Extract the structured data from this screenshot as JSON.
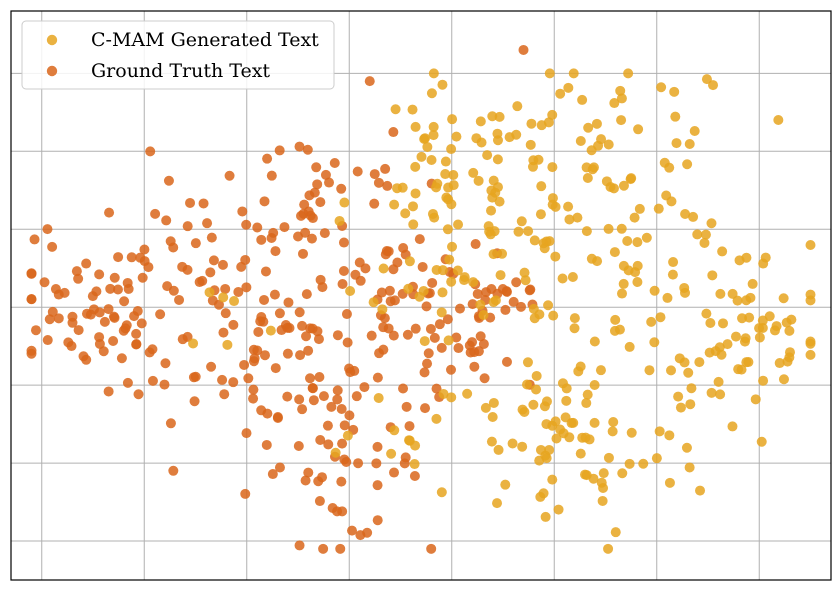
{
  "chart_data": {
    "type": "scatter",
    "title": "",
    "xlabel": "",
    "ylabel": "",
    "xlim": [
      -40,
      40
    ],
    "ylim": [
      -35,
      38
    ],
    "grid": true,
    "xticks": [
      -37,
      -27,
      -17,
      -7,
      3,
      13,
      23,
      33
    ],
    "yticks": [
      30,
      20,
      10,
      0,
      -10,
      -20,
      -30
    ],
    "xtick_labels": [],
    "ytick_labels": [],
    "legend": {
      "placement": "top-left",
      "entries": [
        {
          "label": "C-MAM Generated Text",
          "color": "#e6a520"
        },
        {
          "label": "Ground Truth Text",
          "color": "#d9661b"
        }
      ]
    },
    "series": [
      {
        "name": "C-MAM Generated Text",
        "color": "#e6a520",
        "clusters": [
          {
            "cx": 3,
            "cy": 18,
            "sx": 4,
            "sy": 5,
            "n": 45
          },
          {
            "cx": 18,
            "cy": 20,
            "sx": 7,
            "sy": 6,
            "n": 60
          },
          {
            "cx": 12,
            "cy": 6,
            "sx": 7,
            "sy": 5,
            "n": 50
          },
          {
            "cx": 24,
            "cy": 4,
            "sx": 6,
            "sy": 5,
            "n": 45
          },
          {
            "cx": 14,
            "cy": -18,
            "sx": 7,
            "sy": 6,
            "n": 80
          },
          {
            "cx": 34,
            "cy": -3,
            "sx": 4,
            "sy": 5,
            "n": 35
          },
          {
            "cx": 25,
            "cy": -8,
            "sx": 5,
            "sy": 4,
            "n": 20
          },
          {
            "cx": 3,
            "cy": 8,
            "sx": 4,
            "sy": 5,
            "n": 25
          },
          {
            "cx": -4,
            "cy": -13,
            "sx": 3,
            "sy": 3,
            "n": 8
          },
          {
            "cx": -19,
            "cy": -2,
            "sx": 3,
            "sy": 3,
            "n": 6
          }
        ]
      },
      {
        "name": "Ground Truth Text",
        "color": "#d9661b",
        "clusters": [
          {
            "cx": -22,
            "cy": 0,
            "sx": 7,
            "sy": 8,
            "n": 90
          },
          {
            "cx": -33,
            "cy": 0,
            "sx": 4,
            "sy": 4,
            "n": 45
          },
          {
            "cx": -10,
            "cy": 15,
            "sx": 5,
            "sy": 5,
            "n": 35
          },
          {
            "cx": -3,
            "cy": 2,
            "sx": 5,
            "sy": 6,
            "n": 55
          },
          {
            "cx": -12,
            "cy": -7,
            "sx": 5,
            "sy": 5,
            "n": 45
          },
          {
            "cx": -8,
            "cy": -20,
            "sx": 4,
            "sy": 5,
            "n": 45
          },
          {
            "cx": 3,
            "cy": -8,
            "sx": 3,
            "sy": 4,
            "n": 25
          },
          {
            "cx": 7,
            "cy": 2,
            "sx": 3,
            "sy": 3,
            "n": 20
          }
        ],
        "outliers": [
          [
            10,
            33
          ],
          [
            -34,
            -2
          ],
          [
            -5,
            29
          ]
        ]
      }
    ]
  }
}
